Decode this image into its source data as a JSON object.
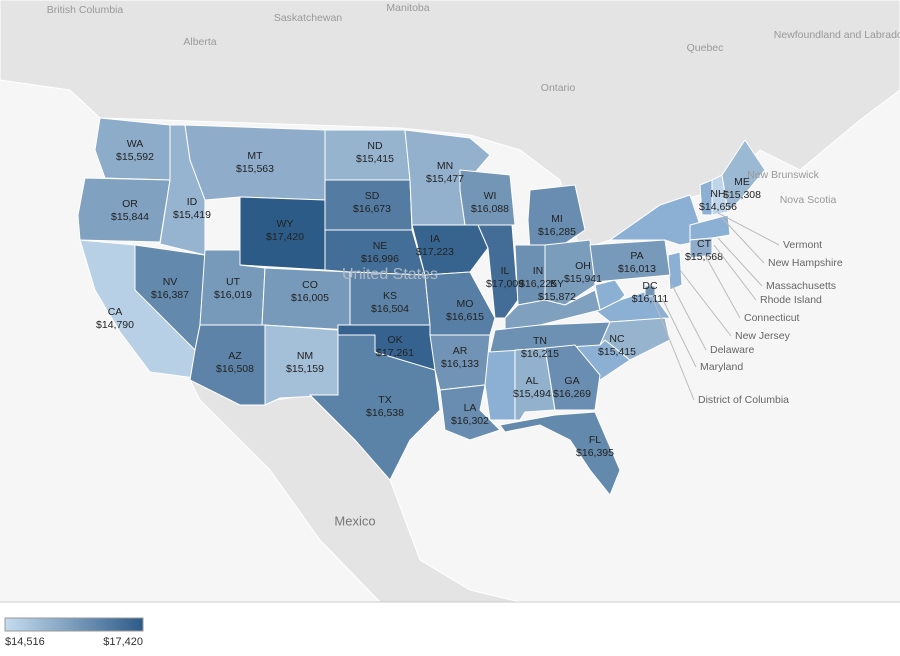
{
  "chart_data": {
    "type": "choropleth",
    "categories": [
      "WA",
      "OR",
      "CA",
      "NV",
      "ID",
      "MT",
      "WY",
      "UT",
      "CO",
      "AZ",
      "NM",
      "ND",
      "SD",
      "NE",
      "KS",
      "OK",
      "TX",
      "MN",
      "IA",
      "MO",
      "AR",
      "LA",
      "WI",
      "IL",
      "MI",
      "IN",
      "OH",
      "KY",
      "TN",
      "AL",
      "GA",
      "FL",
      "NC",
      "PA",
      "DC",
      "NH",
      "ME",
      "CT"
    ],
    "values": [
      15592,
      15844,
      14790,
      16387,
      15419,
      15563,
      17420,
      16019,
      16005,
      16508,
      15159,
      15415,
      16673,
      16996,
      16504,
      17261,
      16538,
      15477,
      17223,
      16615,
      16133,
      16302,
      16088,
      17009,
      16285,
      16225,
      15941,
      15872,
      16215,
      15494,
      16269,
      16395,
      15415,
      16013,
      16111,
      14656,
      15308,
      15568
    ],
    "value_labels": [
      "$15,592",
      "$15,844",
      "$14,790",
      "$16,387",
      "$15,419",
      "$15,563",
      "$17,420",
      "$16,019",
      "$16,005",
      "$16,508",
      "$15,159",
      "$15,415",
      "$16,673",
      "$16,996",
      "$16,504",
      "$17,261",
      "$16,538",
      "$15,477",
      "$17,223",
      "$16,615",
      "$16,133",
      "$16,302",
      "$16,088",
      "$17,009",
      "$16,285",
      "$16,225",
      "$15,941",
      "$15,872",
      "$16,215",
      "$15,494",
      "$16,269",
      "$16,395",
      "$15,415",
      "$16,013",
      "$16,111",
      "$14,656",
      "$15,308",
      "$15,568"
    ],
    "colorbar": {
      "range": [
        14516,
        17420
      ],
      "labels": [
        "$14,516",
        "$17,420"
      ],
      "colors": [
        "#c6dcef",
        "#2d5b88"
      ]
    },
    "place_labels": [
      "British Columbia",
      "Alberta",
      "Saskatchewan",
      "Manitoba",
      "Quebec",
      "Ontario",
      "Newfoundland and Labrador",
      "New Brunswick",
      "Nova Scotia",
      "United States",
      "Mexico"
    ],
    "callouts": [
      "Vermont",
      "New Hampshire",
      "Massachusetts",
      "Rhode Island",
      "Connecticut",
      "New Jersey",
      "Delaware",
      "Maryland",
      "District of Columbia"
    ]
  }
}
